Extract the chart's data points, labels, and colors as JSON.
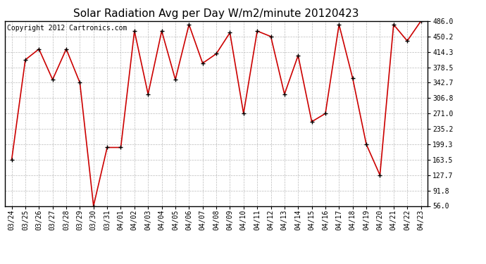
{
  "title": "Solar Radiation Avg per Day W/m2/minute 20120423",
  "copyright": "Copyright 2012 Cartronics.com",
  "dates": [
    "03/24",
    "03/25",
    "03/26",
    "03/27",
    "03/28",
    "03/29",
    "03/30",
    "03/31",
    "04/01",
    "04/02",
    "04/03",
    "04/04",
    "04/05",
    "04/06",
    "04/07",
    "04/08",
    "04/09",
    "04/10",
    "04/11",
    "04/12",
    "04/13",
    "04/14",
    "04/15",
    "04/16",
    "04/17",
    "04/18",
    "04/19",
    "04/20",
    "04/21",
    "04/22",
    "04/23"
  ],
  "values": [
    163.5,
    396.0,
    421.0,
    350.0,
    421.0,
    342.7,
    56.0,
    192.0,
    192.0,
    463.0,
    316.0,
    463.0,
    350.0,
    478.0,
    388.0,
    410.0,
    459.0,
    271.0,
    463.0,
    450.2,
    316.0,
    406.0,
    252.0,
    271.0,
    478.0,
    353.0,
    199.3,
    127.7,
    478.0,
    440.0,
    486.0
  ],
  "ylim": [
    56.0,
    486.0
  ],
  "yticks": [
    56.0,
    91.8,
    127.7,
    163.5,
    199.3,
    235.2,
    271.0,
    306.8,
    342.7,
    378.5,
    414.3,
    450.2,
    486.0
  ],
  "line_color": "#cc0000",
  "marker_color": "#000000",
  "bg_color": "#ffffff",
  "grid_color": "#aaaaaa",
  "title_fontsize": 11,
  "copyright_fontsize": 7,
  "tick_fontsize": 7
}
